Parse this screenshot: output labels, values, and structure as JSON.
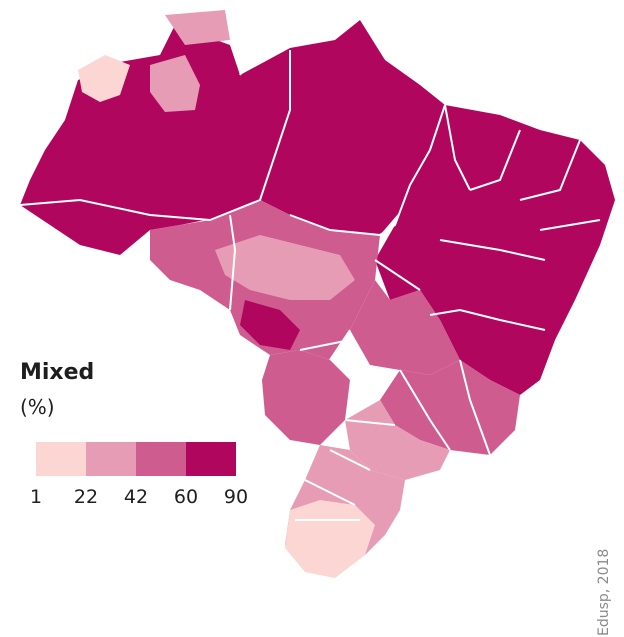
{
  "legend": {
    "title": "Mixed",
    "unit": "(%)",
    "ticks": [
      "1",
      "22",
      "42",
      "60",
      "90"
    ],
    "colors": [
      "#fbd6d2",
      "#e69cb4",
      "#cf5c8f",
      "#b0065e"
    ]
  },
  "credit": "Edusp, 2018",
  "colors": {
    "darkest": "#b0065e",
    "dark": "#cf5c8f",
    "medium": "#e69cb4",
    "light": "#fbd6d2",
    "border": "#ffffff"
  }
}
